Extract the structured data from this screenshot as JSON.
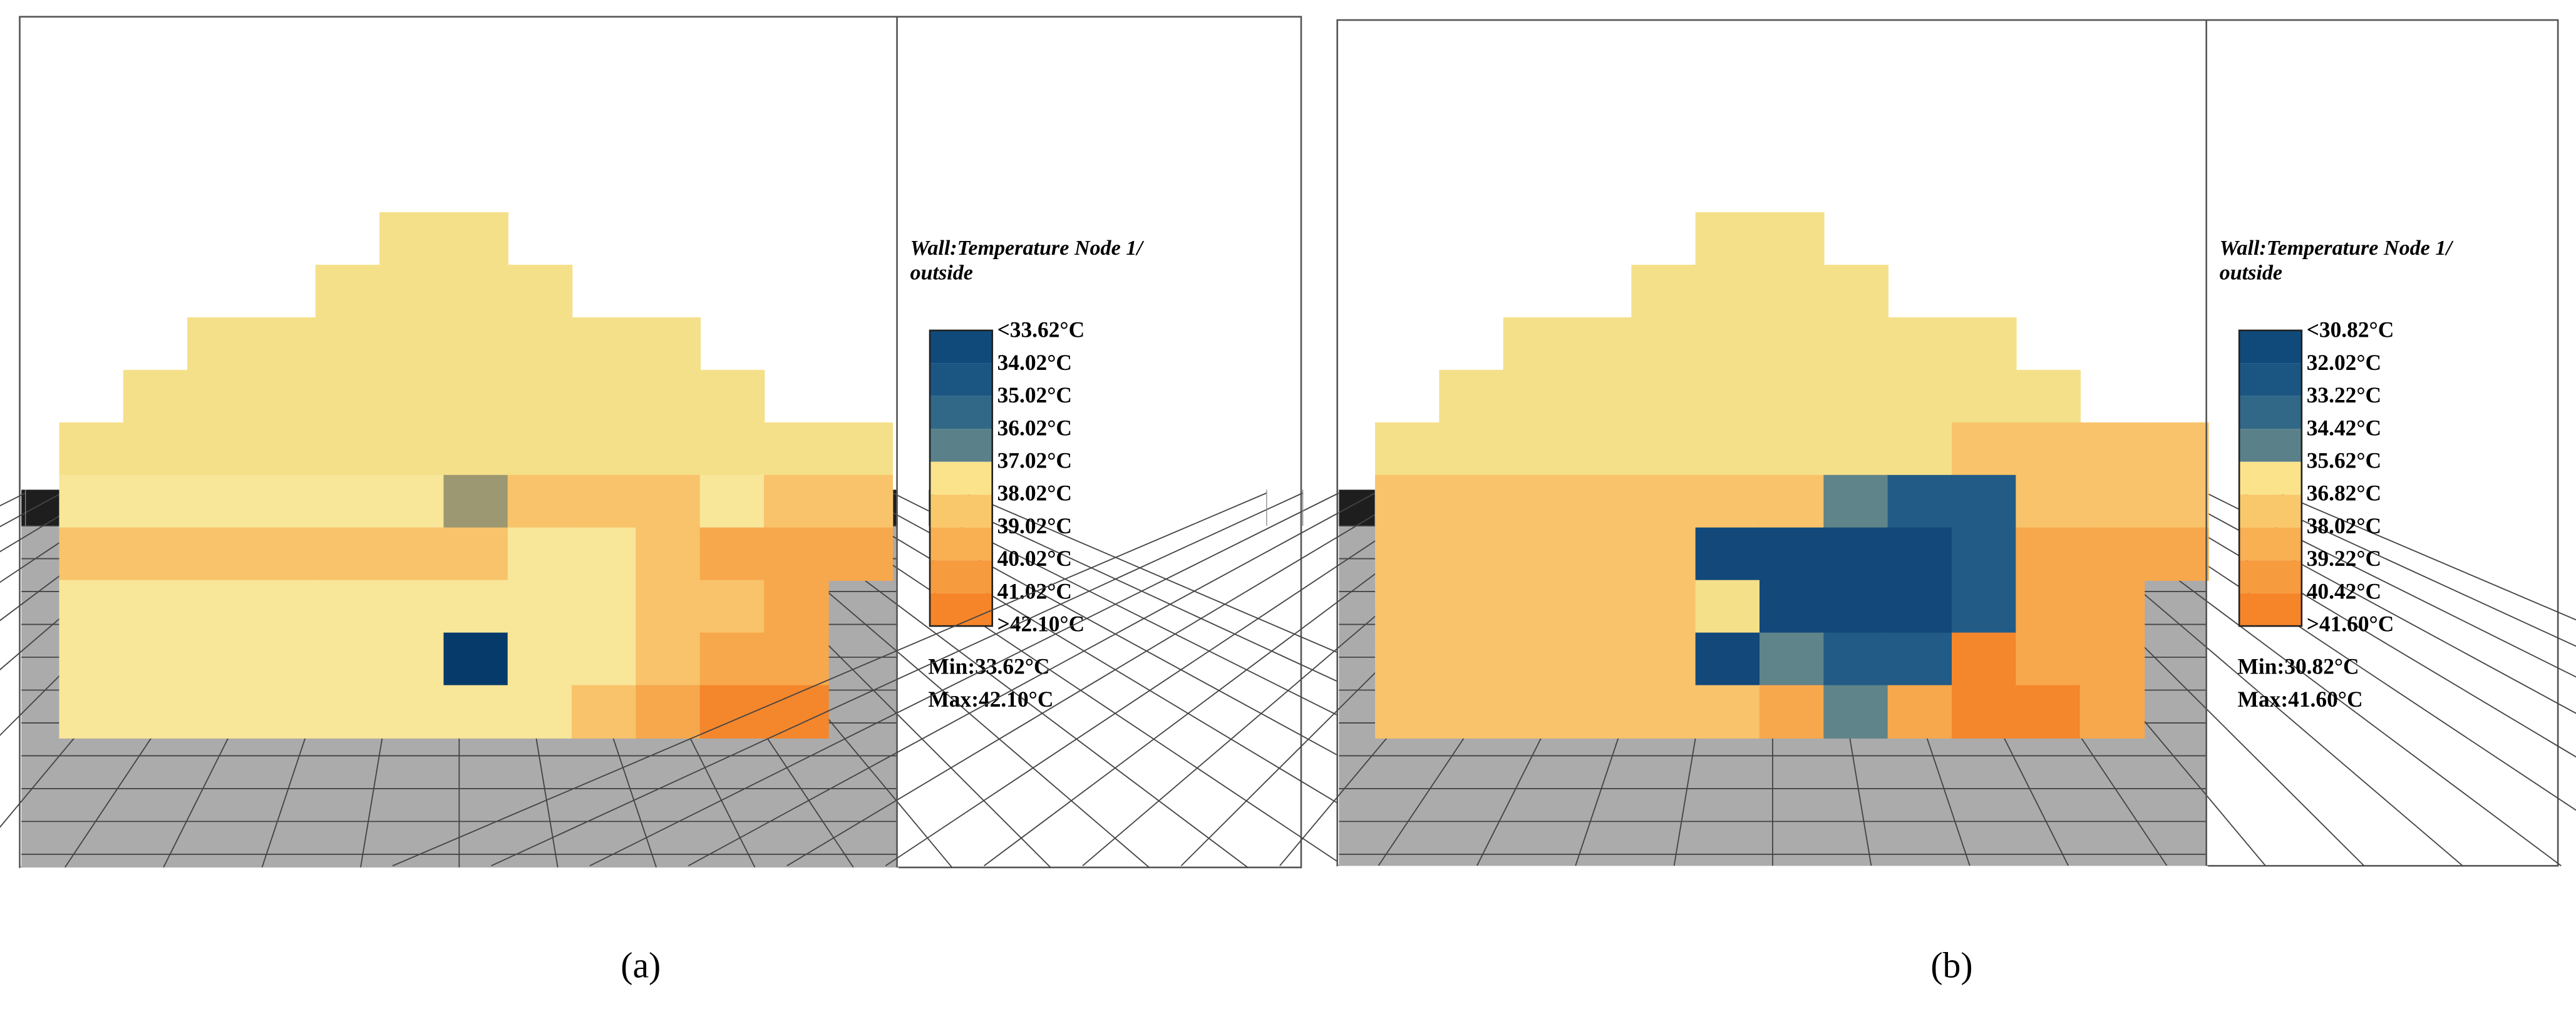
{
  "panels": [
    {
      "title_lines": [
        "Wall:Temperature Node 1/",
        "outside"
      ],
      "legend": [
        "<33.62°C",
        "34.02°C",
        "35.02°C",
        "36.02°C",
        "37.02°C",
        "38.02°C",
        "39.02°C",
        "40.02°C",
        "41.02°C",
        ">42.10°C"
      ],
      "min": "Min:33.62°C",
      "max": "Max:42.10°C",
      "caption": "(a)"
    },
    {
      "title_lines": [
        "Wall:Temperature Node 1/",
        "outside"
      ],
      "legend": [
        "<30.82°C",
        "32.02°C",
        "33.22°C",
        "34.42°C",
        "35.62°C",
        "36.82°C",
        "38.02°C",
        "39.22°C",
        "40.42°C",
        ">41.60°C"
      ],
      "min": "Min:30.82°C",
      "max": "Max:41.60°C",
      "caption": "(b)"
    }
  ]
}
